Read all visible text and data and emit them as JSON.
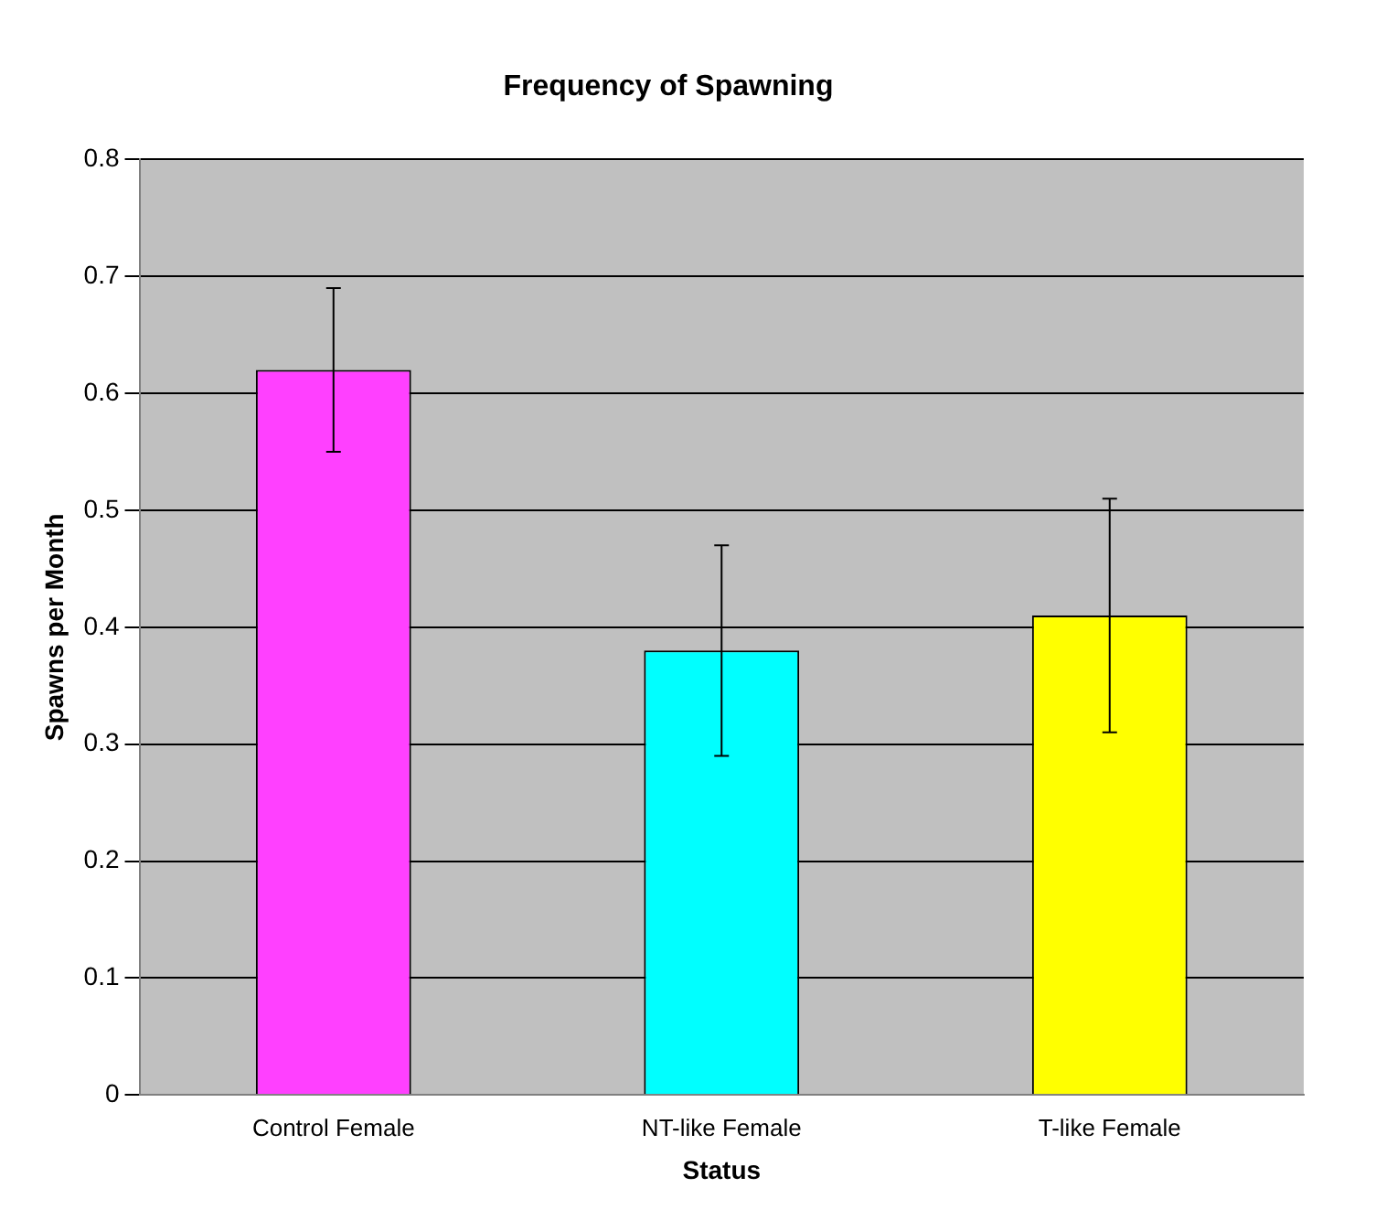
{
  "chart_data": {
    "type": "bar",
    "title": "Frequency of Spawning",
    "xlabel": "Status",
    "ylabel": "Spawns per Month",
    "categories": [
      "Control Female",
      "NT-like Female",
      "T-like Female"
    ],
    "values": [
      0.62,
      0.38,
      0.41
    ],
    "colors": [
      "#ff40ff",
      "#00ffff",
      "#ffff00"
    ],
    "errors": [
      0.07,
      0.09,
      0.1
    ],
    "ylim": [
      0,
      0.8
    ],
    "yticks": [
      0,
      0.1,
      0.2,
      0.3,
      0.4,
      0.5,
      0.6,
      0.7,
      0.8
    ],
    "grid": "y",
    "legend": false
  }
}
